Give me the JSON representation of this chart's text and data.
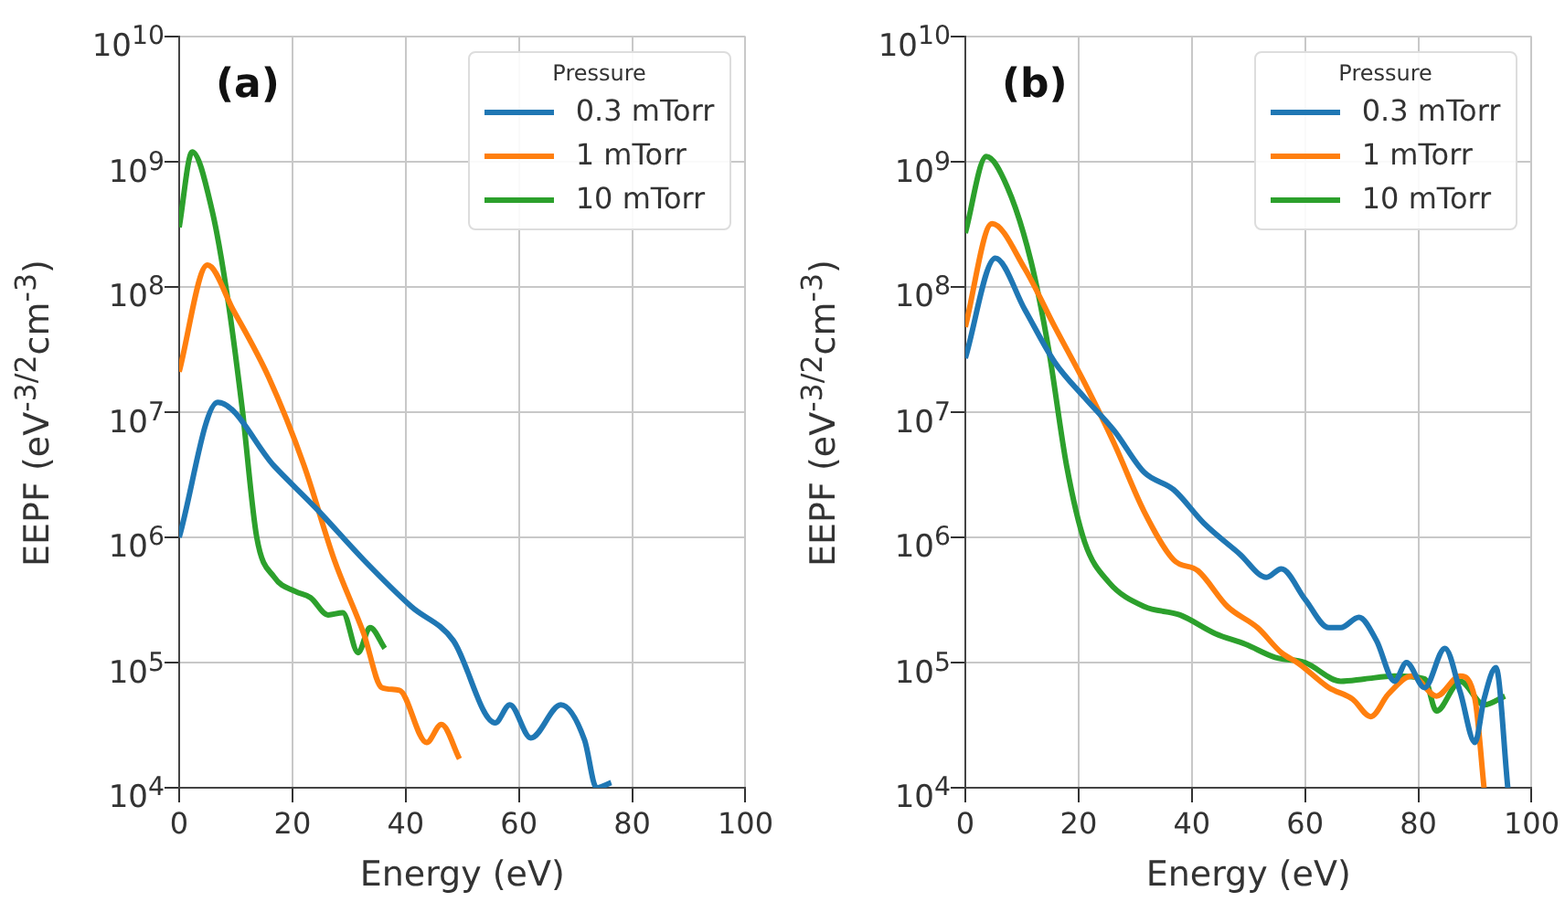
{
  "chart_data": [
    {
      "type": "line",
      "annotations": [
        "(a)"
      ],
      "xlabel": "Energy (eV)",
      "ylabel": "EEPF (eV$^{-3/2}$cm$^{-3}$)",
      "legend_title": "Pressure",
      "legend": "top right",
      "grid": true,
      "log": "y",
      "xlim": [
        0,
        100
      ],
      "xticks": [
        0,
        20,
        40,
        60,
        80,
        100
      ],
      "ylim": [
        10000.0,
        10000000000.0
      ],
      "yticks": [
        {
          "value": 10000.0,
          "label": "10$^{4}$"
        },
        {
          "value": 100000.0,
          "label": "10$^{5}$"
        },
        {
          "value": 1000000.0,
          "label": "10$^{6}$"
        },
        {
          "value": 10000000.0,
          "label": "10$^{7}$"
        },
        {
          "value": 100000000.0,
          "label": "10$^{8}$"
        },
        {
          "value": 1000000000.0,
          "label": "10$^{9}$"
        },
        {
          "value": 10000000000.0,
          "label": "10$^{10}$"
        }
      ],
      "series": [
        {
          "name": "0.3 mTorr",
          "color": "#1f77b4",
          "x": [
            0,
            6.8,
            16.8,
            24.2,
            32.6,
            41,
            48.4,
            55.8,
            58.4,
            62.1,
            67.4,
            71.6,
            73.7,
            76.3
          ],
          "values": [
            1000000.0,
            12000000.0,
            3700000.0,
            1700000.0,
            660000.0,
            280000.0,
            150000.0,
            33000.0,
            46000.0,
            25000.0,
            46000.0,
            24000.0,
            10000.0,
            11000.0
          ]
        },
        {
          "name": "1 mTorr",
          "color": "#ff7f0e",
          "x": [
            0,
            5,
            9.5,
            15.8,
            22.1,
            27.4,
            32.6,
            35.8,
            38.9,
            43.7,
            46.3,
            49.5
          ],
          "values": [
            21000000.0,
            150000000.0,
            66000000.0,
            19000000.0,
            3700000.0,
            660000.0,
            170000.0,
            63000.0,
            60000.0,
            23000.0,
            32000.0,
            17000.0
          ]
        },
        {
          "name": "10 mTorr",
          "color": "#2ca02c",
          "x": [
            0,
            2.3,
            5.8,
            8.4,
            11.1,
            13.7,
            16.8,
            20.5,
            23.2,
            26.3,
            28.9,
            31.6,
            33.7,
            36.3
          ],
          "values": [
            300000000.0,
            1200000000.0,
            410000000.0,
            91000000.0,
            11000000.0,
            1000000.0,
            480000.0,
            370000.0,
            330000.0,
            240000.0,
            250000.0,
            120000.0,
            190000.0,
            130000.0
          ]
        }
      ]
    },
    {
      "type": "line",
      "annotations": [
        "(b)"
      ],
      "xlabel": "Energy (eV)",
      "ylabel": "EEPF (eV$^{-3/2}$cm$^{-3}$)",
      "legend_title": "Pressure",
      "legend": "top right",
      "grid": true,
      "log": "y",
      "xlim": [
        0,
        100
      ],
      "xticks": [
        0,
        20,
        40,
        60,
        80,
        100
      ],
      "ylim": [
        10000.0,
        10000000000.0
      ],
      "yticks": [
        {
          "value": 10000.0,
          "label": "10$^{4}$"
        },
        {
          "value": 100000.0,
          "label": "10$^{5}$"
        },
        {
          "value": 1000000.0,
          "label": "10$^{6}$"
        },
        {
          "value": 10000000.0,
          "label": "10$^{7}$"
        },
        {
          "value": 100000000.0,
          "label": "10$^{8}$"
        },
        {
          "value": 1000000000.0,
          "label": "10$^{9}$"
        },
        {
          "value": 10000000000.0,
          "label": "10$^{10}$"
        }
      ],
      "series": [
        {
          "name": "0.3 mTorr",
          "color": "#1f77b4",
          "x": [
            0,
            5.3,
            10.5,
            15.8,
            21.1,
            26.3,
            31.6,
            36.8,
            42.1,
            48.4,
            53.2,
            55.8,
            60,
            64.2,
            66.3,
            69.5,
            72.6,
            75.8,
            77.9,
            81.1,
            84.7,
            87.4,
            90,
            91.6,
            93.7,
            95.8
          ],
          "values": [
            27000000.0,
            170000000.0,
            66000000.0,
            25000000.0,
            13000000.0,
            7100000.0,
            3300000.0,
            2400000.0,
            1300000.0,
            740000.0,
            480000.0,
            560000.0,
            320000.0,
            190000.0,
            190000.0,
            230000.0,
            150000.0,
            71000.0,
            100000.0,
            63000.0,
            130000.0,
            58000.0,
            23000.0,
            51000.0,
            91000.0,
            10000.0
          ]
        },
        {
          "name": "1 mTorr",
          "color": "#ff7f0e",
          "x": [
            0,
            4.7,
            10.5,
            15.8,
            21.1,
            26.3,
            31.6,
            36.8,
            41.1,
            46.3,
            51.6,
            55.8,
            58.9,
            64.2,
            68.4,
            71.6,
            74.7,
            78.9,
            83.2,
            87.4,
            90,
            91.6
          ],
          "values": [
            48000000.0,
            320000000.0,
            140000000.0,
            48000000.0,
            17000000.0,
            5600000.0,
            1600000.0,
            660000.0,
            540000.0,
            280000.0,
            190000.0,
            120000.0,
            98000.0,
            63000.0,
            51000.0,
            37000.0,
            56000.0,
            78000.0,
            54000.0,
            78000.0,
            51000.0,
            10000.0
          ]
        },
        {
          "name": "10 mTorr",
          "color": "#2ca02c",
          "x": [
            0,
            3.7,
            7.4,
            11.6,
            14.7,
            17.9,
            21.1,
            25.3,
            31.6,
            37.9,
            44.2,
            49.5,
            54.7,
            60,
            66.3,
            70.5,
            75.8,
            81.1,
            83.2,
            87.4,
            91.6,
            95.3
          ],
          "values": [
            270000000.0,
            1100000000.0,
            630000000.0,
            160000000.0,
            32000000.0,
            3700000.0,
            910000.0,
            440000.0,
            280000.0,
            240000.0,
            170000.0,
            140000.0,
            110000.0,
            100000.0,
            71000.0,
            74000.0,
            78000.0,
            74000.0,
            41000.0,
            71000.0,
            46000.0,
            54000.0
          ]
        }
      ]
    }
  ]
}
